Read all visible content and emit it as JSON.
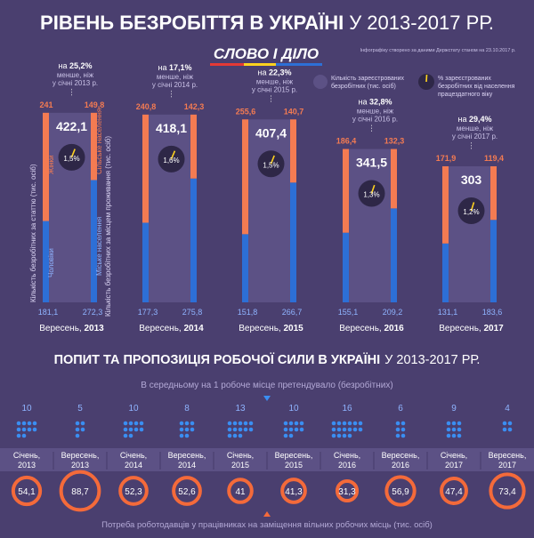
{
  "header": {
    "title_bold": "РІВЕНЬ БЕЗРОБІТТЯ В УКРАЇНІ",
    "title_light": "У 2013-2017 РР.",
    "logo_text": "СЛОВО І ДІЛО",
    "source_note": "Інфографіку створено за даними Держстату станом на 23.10.2017 р."
  },
  "legend": {
    "registered_label_1": "Кількість зареєстрованих",
    "registered_label_2": "безробітних (тис. осіб)",
    "percent_label_1": "% зареєстрованих",
    "percent_label_2": "безробітних від населення",
    "percent_label_3": "працездатного віку"
  },
  "colors": {
    "background": "#4a3f6f",
    "panel": "#5c5185",
    "women_orange": "#f47b52",
    "men_blue": "#2d6fd6",
    "accent_yellow": "#ffd21f",
    "circle_orange": "#f46a3a",
    "dot_blue": "#3a8ef2"
  },
  "axis_labels": {
    "left_axis": "Кількість безробітних за статтю (тис. осіб)",
    "right_axis": "Кількість безробітних за місцем проживання (тис. осіб)",
    "women": "Жінки",
    "men": "Чоловіки",
    "rural": "Сільське населення",
    "urban": "Міське населення"
  },
  "chart_data": [
    {
      "type": "bar",
      "title": "РІВЕНЬ БЕЗРОБІТТЯ В УКРАЇНІ У 2013-2017 РР.",
      "categories": [
        "Вересень, 2013",
        "Вересень, 2014",
        "Вересень, 2015",
        "Вересень, 2016",
        "Вересень, 2017"
      ],
      "series": [
        {
          "name": "Жінки",
          "values": [
            241,
            240.8,
            255.6,
            186.4,
            171.9
          ]
        },
        {
          "name": "Чоловіки",
          "values": [
            181.1,
            177.3,
            151.8,
            155.1,
            131.1
          ]
        },
        {
          "name": "Сільське населення",
          "values": [
            149.8,
            142.3,
            140.7,
            132.3,
            119.4
          ]
        },
        {
          "name": "Міське населення",
          "values": [
            272.3,
            275.8,
            266.7,
            209.2,
            183.6
          ]
        }
      ],
      "totals": [
        "422,1",
        "418,1",
        "407,4",
        "341,5",
        "303"
      ],
      "percents": [
        "1,5%",
        "1,6%",
        "1,5%",
        "1,3%",
        "1,2%"
      ],
      "percent_values": [
        1.5,
        1.6,
        1.5,
        1.3,
        1.2
      ],
      "bar_labels": {
        "women": [
          "241",
          "240,8",
          "255,6",
          "186,4",
          "171,9"
        ],
        "rural": [
          "149,8",
          "142,3",
          "140,7",
          "132,3",
          "119,4"
        ],
        "men": [
          "181,1",
          "177,3",
          "151,8",
          "155,1",
          "131,1"
        ],
        "urban": [
          "272,3",
          "275,8",
          "266,7",
          "209,2",
          "183,6"
        ]
      },
      "changes": [
        {
          "pct": "на 25,2%",
          "line1": "менше, ніж",
          "line2": "у січні 2013 р."
        },
        {
          "pct": "на 17,1%",
          "line1": "менше, ніж",
          "line2": "у січні 2014 р."
        },
        {
          "pct": "на 22,3%",
          "line1": "менше, ніж",
          "line2": "у січні 2015 р."
        },
        {
          "pct": "на 32,8%",
          "line1": "менше, ніж",
          "line2": "у січні 2016 р."
        },
        {
          "pct": "на 29,4%",
          "line1": "менше, ніж",
          "line2": "у січні 2017 р."
        }
      ]
    },
    {
      "type": "table",
      "title": "ПОПИТ ТА ПРОПОЗИЦІЯ РОБОЧОЇ СИЛИ В УКРАЇНІ У 2013-2017 РР.",
      "periods": [
        {
          "l1": "Січень,",
          "l2": "2013"
        },
        {
          "l1": "Вересень,",
          "l2": "2013"
        },
        {
          "l1": "Січень,",
          "l2": "2014"
        },
        {
          "l1": "Вересень,",
          "l2": "2014"
        },
        {
          "l1": "Січень,",
          "l2": "2015"
        },
        {
          "l1": "Вересень,",
          "l2": "2015"
        },
        {
          "l1": "Січень,",
          "l2": "2016"
        },
        {
          "l1": "Вересень,",
          "l2": "2016"
        },
        {
          "l1": "Січень,",
          "l2": "2017"
        },
        {
          "l1": "Вересень,",
          "l2": "2017"
        }
      ],
      "applicants_per_vacancy": [
        10,
        5,
        10,
        8,
        13,
        10,
        16,
        6,
        9,
        4
      ],
      "applicants_labels": [
        "10",
        "5",
        "10",
        "8",
        "13",
        "10",
        "16",
        "6",
        "9",
        "4"
      ],
      "employer_demand": [
        54.1,
        88.7,
        52.3,
        52.6,
        41,
        41.3,
        31.3,
        56.9,
        47.4,
        73.4
      ],
      "employer_demand_labels": [
        "54,1",
        "88,7",
        "52,3",
        "52,6",
        "41",
        "41,3",
        "31,3",
        "56,9",
        "47,4",
        "73,4"
      ]
    }
  ],
  "section2": {
    "title_bold": "ПОПИТ ТА ПРОПОЗИЦІЯ РОБОЧОЇ СИЛИ В УКРАЇНІ",
    "title_light": "У 2013-2017 РР.",
    "applicants_caption": "В середньому на 1 робоче місце претендувало (безробітних)",
    "demand_caption": "Потреба роботодавців у працівниках на заміщення вільних робочих місць (тис. осіб)"
  }
}
